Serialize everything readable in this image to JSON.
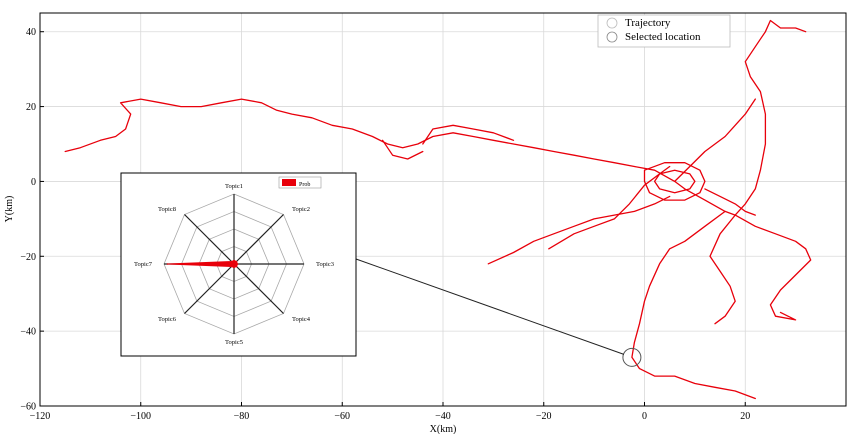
{
  "chart_data": {
    "type": "line",
    "title": "",
    "xlabel": "X(km)",
    "ylabel": "Y(km)",
    "xlim": [
      -120,
      40
    ],
    "ylim": [
      -60,
      45
    ],
    "x_ticks": [
      -120,
      -100,
      -80,
      -60,
      -40,
      -20,
      0,
      20
    ],
    "y_ticks": [
      -60,
      -40,
      -20,
      0,
      20,
      40
    ],
    "x_tick_labels": [
      "−120",
      "−100",
      "−80",
      "−60",
      "−40",
      "−20",
      "0",
      "20"
    ],
    "y_tick_labels": [
      "−60",
      "−40",
      "−20",
      "0",
      "20",
      "40"
    ],
    "grid": true,
    "legend": {
      "placement": "top-right",
      "entries": [
        "Trajectory",
        "Selected location"
      ]
    },
    "trajectory_color": "#e8000b",
    "selected_location": {
      "x": -2.5,
      "y": -47
    },
    "trajectory_paths": [
      [
        [
          -115,
          8
        ],
        [
          -112,
          9
        ],
        [
          -108,
          11
        ],
        [
          -105,
          12
        ],
        [
          -103,
          14
        ],
        [
          -102,
          18
        ],
        [
          -104,
          21
        ],
        [
          -100,
          22
        ],
        [
          -96,
          21
        ],
        [
          -92,
          20
        ],
        [
          -88,
          20
        ],
        [
          -84,
          21
        ],
        [
          -80,
          22
        ],
        [
          -76,
          21
        ],
        [
          -73,
          19
        ],
        [
          -70,
          18
        ],
        [
          -66,
          17
        ],
        [
          -62,
          15
        ],
        [
          -58,
          14
        ],
        [
          -54,
          12
        ],
        [
          -51,
          10
        ],
        [
          -48,
          9
        ],
        [
          -45,
          10
        ],
        [
          -42,
          12
        ],
        [
          -38,
          13
        ],
        [
          -34,
          12
        ],
        [
          -30,
          11
        ],
        [
          -26,
          10
        ],
        [
          -22,
          9
        ],
        [
          -18,
          8
        ],
        [
          -14,
          7
        ],
        [
          -10,
          6
        ],
        [
          -6,
          5
        ],
        [
          -2,
          4
        ],
        [
          2,
          3
        ],
        [
          6,
          0
        ],
        [
          8,
          -2
        ],
        [
          12,
          -5
        ],
        [
          16,
          -8
        ],
        [
          18,
          -9
        ]
      ],
      [
        [
          18,
          -9
        ],
        [
          20,
          -6
        ],
        [
          22,
          -2
        ],
        [
          23,
          3
        ],
        [
          24,
          10
        ],
        [
          24,
          18
        ],
        [
          23,
          24
        ],
        [
          21,
          28
        ],
        [
          20,
          32
        ],
        [
          22,
          36
        ],
        [
          24,
          40
        ],
        [
          25,
          43
        ],
        [
          27,
          41
        ],
        [
          30,
          41
        ],
        [
          32,
          40
        ]
      ],
      [
        [
          16,
          -8
        ],
        [
          12,
          -12
        ],
        [
          8,
          -16
        ],
        [
          5,
          -18
        ],
        [
          3,
          -22
        ],
        [
          1,
          -28
        ],
        [
          0,
          -32
        ],
        [
          -1,
          -38
        ],
        [
          -2,
          -43
        ],
        [
          -2.5,
          -47
        ],
        [
          -1,
          -50
        ],
        [
          2,
          -52
        ],
        [
          6,
          -52
        ],
        [
          10,
          -54
        ],
        [
          14,
          -55
        ],
        [
          18,
          -56
        ],
        [
          22,
          -58
        ]
      ],
      [
        [
          6,
          0
        ],
        [
          9,
          4
        ],
        [
          12,
          8
        ],
        [
          16,
          12
        ],
        [
          20,
          18
        ],
        [
          22,
          22
        ]
      ],
      [
        [
          -31,
          -22
        ],
        [
          -26,
          -19
        ],
        [
          -22,
          -16
        ],
        [
          -18,
          -14
        ],
        [
          -14,
          -12
        ],
        [
          -10,
          -10
        ],
        [
          -6,
          -9
        ],
        [
          -2,
          -8
        ],
        [
          2,
          -6
        ],
        [
          5,
          -4
        ]
      ],
      [
        [
          -19,
          -18
        ],
        [
          -14,
          -14
        ],
        [
          -10,
          -12
        ],
        [
          -6,
          -10
        ],
        [
          -3,
          -6
        ],
        [
          0,
          -1
        ],
        [
          3,
          2
        ],
        [
          5,
          4
        ]
      ],
      [
        [
          18,
          -9
        ],
        [
          22,
          -12
        ],
        [
          26,
          -14
        ],
        [
          30,
          -16
        ],
        [
          32,
          -18
        ],
        [
          33,
          -21
        ],
        [
          30,
          -25
        ],
        [
          27,
          -29
        ],
        [
          25,
          -33
        ],
        [
          26,
          -36
        ],
        [
          30,
          -37
        ],
        [
          27,
          -35
        ]
      ],
      [
        [
          18,
          -9
        ],
        [
          15,
          -14
        ],
        [
          13,
          -20
        ],
        [
          15,
          -24
        ],
        [
          17,
          -28
        ],
        [
          18,
          -32
        ],
        [
          16,
          -36
        ],
        [
          14,
          -38
        ]
      ],
      [
        [
          -44,
          10
        ],
        [
          -42,
          14
        ],
        [
          -38,
          15
        ],
        [
          -34,
          14
        ],
        [
          -30,
          13
        ],
        [
          -26,
          11
        ]
      ],
      [
        [
          -52,
          11
        ],
        [
          -50,
          7
        ],
        [
          -47,
          6
        ],
        [
          -44,
          8
        ]
      ],
      [
        [
          0,
          3
        ],
        [
          4,
          5
        ],
        [
          8,
          5
        ],
        [
          11,
          3
        ],
        [
          12,
          0
        ],
        [
          11,
          -3
        ],
        [
          8,
          -5
        ],
        [
          4,
          -5
        ],
        [
          1,
          -3
        ],
        [
          0,
          0
        ],
        [
          0,
          3
        ]
      ],
      [
        [
          3,
          2
        ],
        [
          6,
          3
        ],
        [
          9,
          2
        ],
        [
          10,
          0
        ],
        [
          9,
          -2
        ],
        [
          6,
          -3
        ],
        [
          3,
          -2
        ],
        [
          2,
          0
        ],
        [
          3,
          2
        ]
      ],
      [
        [
          12,
          -2
        ],
        [
          15,
          -4
        ],
        [
          18,
          -6
        ],
        [
          20,
          -8
        ],
        [
          22,
          -9
        ]
      ]
    ]
  },
  "inset": {
    "type": "radar",
    "axes": [
      "Topic1",
      "Topic2",
      "Topic3",
      "Topic4",
      "Topic5",
      "Topic6",
      "Topic7",
      "Topic8"
    ],
    "series": [
      {
        "name": "Prob",
        "values": [
          0.05,
          0.05,
          0.05,
          0.05,
          0.05,
          0.05,
          0.95,
          0.05
        ]
      }
    ],
    "max": 1,
    "rings": 4,
    "legend_placement": "top-right",
    "fill_color": "#e8000b"
  }
}
